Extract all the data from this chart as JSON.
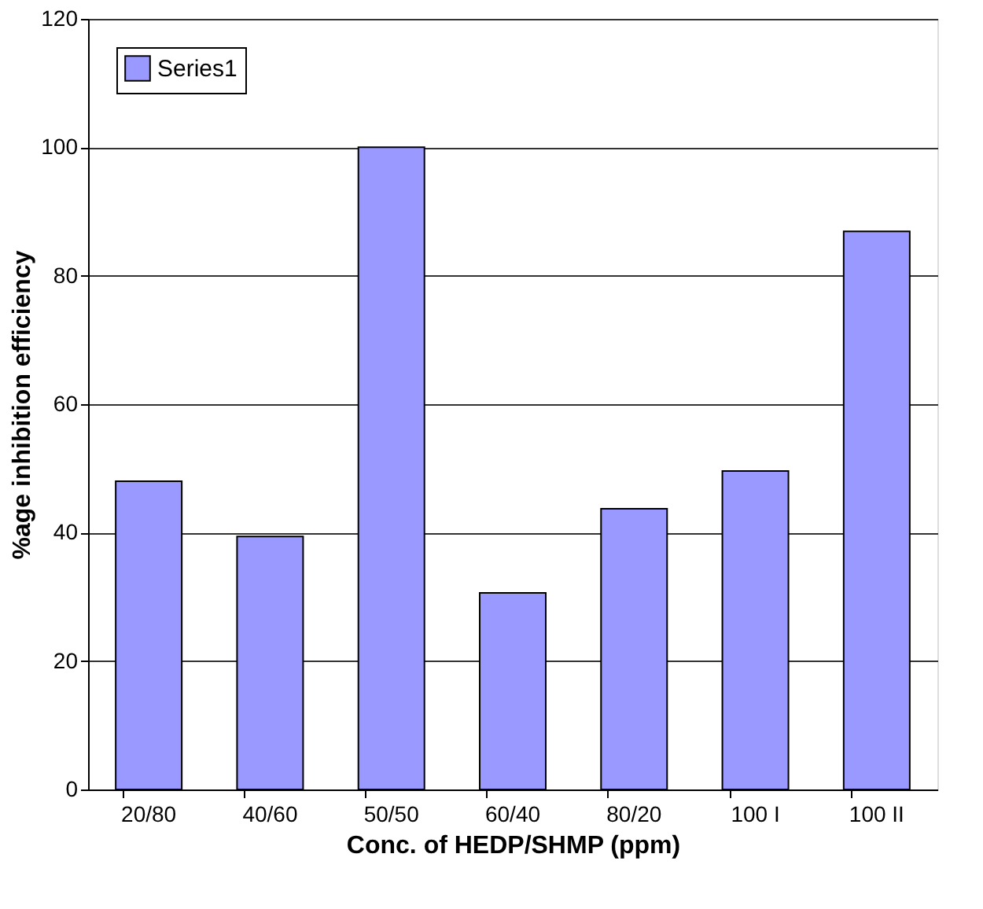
{
  "chart_data": {
    "type": "bar",
    "xlabel": "Conc. of HEDP/SHMP (ppm)",
    "ylabel": "%age inhibition efficiency",
    "categories": [
      "20/80",
      "40/60",
      "50/50",
      "60/40",
      "80/20",
      "100 I",
      "100 II"
    ],
    "series": [
      {
        "name": "Series1",
        "color": "#9999ff",
        "values": [
          48.0,
          39.4,
          100,
          30.6,
          43.7,
          49.6,
          86.9
        ]
      }
    ],
    "ylim": [
      0,
      120
    ],
    "yticks": [
      0,
      20,
      40,
      60,
      80,
      100,
      120
    ],
    "grid": "y",
    "legend": "top left"
  }
}
